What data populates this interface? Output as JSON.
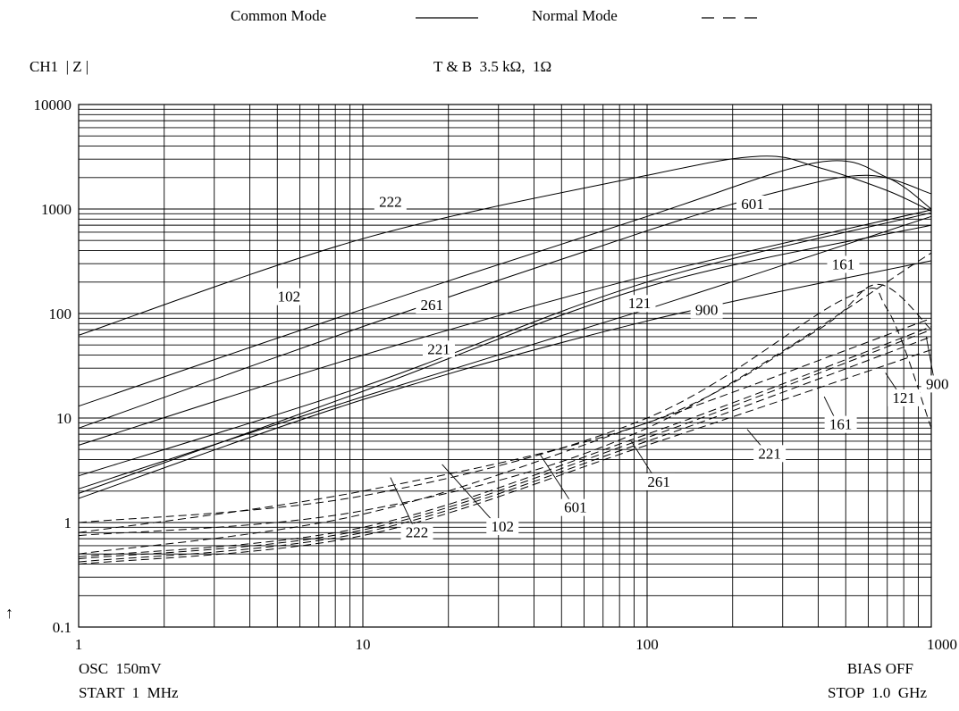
{
  "chart_data": {
    "type": "line",
    "x_scale": "log",
    "y_scale": "log",
    "xlim": [
      1,
      1000
    ],
    "ylim": [
      0.1,
      10000
    ],
    "grid": true,
    "legend": {
      "common": "Common Mode",
      "normal": "Normal Mode",
      "placement": "top-center"
    },
    "ylabel": "CH1  | Z |",
    "title": "T & B  3.5 kΩ,  1Ω",
    "x_ticks": [
      "1",
      "10",
      "100",
      "1000"
    ],
    "y_ticks": [
      "10000",
      "1000",
      "100",
      "10",
      "1",
      "0.1"
    ],
    "arrow_glyph": "↑",
    "footer": {
      "osc": "OSC  150mV",
      "start": "START  1  MHz",
      "bias": "BIAS OFF",
      "stop": "STOP  1.0  GHz"
    },
    "common_mode_series": [
      {
        "name": "222",
        "points": [
          [
            1,
            62
          ],
          [
            10,
            520
          ],
          [
            100,
            2100
          ],
          [
            250,
            3200
          ],
          [
            400,
            2500
          ],
          [
            700,
            1500
          ],
          [
            1000,
            950
          ]
        ]
      },
      {
        "name": "601",
        "points": [
          [
            1,
            13
          ],
          [
            10,
            110
          ],
          [
            100,
            850
          ],
          [
            400,
            2800
          ],
          [
            700,
            2000
          ],
          [
            1000,
            1000
          ]
        ]
      },
      {
        "name": "102",
        "points": [
          [
            1,
            8
          ],
          [
            10,
            75
          ],
          [
            100,
            620
          ],
          [
            300,
            1500
          ],
          [
            600,
            2100
          ],
          [
            1000,
            1400
          ]
        ]
      },
      {
        "name": "261",
        "points": [
          [
            1,
            5.5
          ],
          [
            10,
            40
          ],
          [
            100,
            230
          ],
          [
            1000,
            980
          ]
        ]
      },
      {
        "name": "221",
        "points": [
          [
            1,
            2.8
          ],
          [
            10,
            20
          ],
          [
            100,
            200
          ],
          [
            1000,
            920
          ]
        ]
      },
      {
        "name": "121",
        "points": [
          [
            1,
            2.1
          ],
          [
            10,
            16
          ],
          [
            100,
            110
          ],
          [
            1000,
            850
          ]
        ]
      },
      {
        "name": "161",
        "points": [
          [
            1,
            1.9
          ],
          [
            10,
            18
          ],
          [
            100,
            180
          ],
          [
            1000,
            700
          ]
        ]
      },
      {
        "name": "900",
        "points": [
          [
            1,
            1.7
          ],
          [
            10,
            15
          ],
          [
            100,
            85
          ],
          [
            1000,
            320
          ]
        ]
      }
    ],
    "normal_mode_series": [
      {
        "name": "222",
        "points": [
          [
            1,
            1
          ],
          [
            10,
            1.8
          ],
          [
            100,
            10
          ],
          [
            500,
            140
          ],
          [
            700,
            110
          ],
          [
            1000,
            8
          ]
        ]
      },
      {
        "name": "900",
        "points": [
          [
            1,
            0.8
          ],
          [
            10,
            2
          ],
          [
            100,
            9
          ],
          [
            400,
            70
          ],
          [
            650,
            190
          ],
          [
            1000,
            70
          ]
        ]
      },
      {
        "name": "102",
        "points": [
          [
            1,
            0.75
          ],
          [
            10,
            1.3
          ],
          [
            100,
            8
          ],
          [
            1000,
            380
          ]
        ]
      },
      {
        "name": "601",
        "points": [
          [
            1,
            0.5
          ],
          [
            10,
            1.2
          ],
          [
            100,
            9
          ],
          [
            1000,
            90
          ]
        ]
      },
      {
        "name": "261",
        "points": [
          [
            1,
            0.47
          ],
          [
            10,
            0.9
          ],
          [
            100,
            7
          ],
          [
            1000,
            75
          ]
        ]
      },
      {
        "name": "221",
        "points": [
          [
            1,
            0.45
          ],
          [
            10,
            0.85
          ],
          [
            100,
            6.5
          ],
          [
            1000,
            70
          ]
        ]
      },
      {
        "name": "161",
        "points": [
          [
            1,
            0.42
          ],
          [
            10,
            0.8
          ],
          [
            100,
            6
          ],
          [
            1000,
            60
          ]
        ]
      },
      {
        "name": "121",
        "points": [
          [
            1,
            0.4
          ],
          [
            10,
            0.75
          ],
          [
            100,
            5.5
          ],
          [
            1000,
            45
          ]
        ]
      }
    ],
    "label_positions_note": "",
    "common_labels": [
      {
        "text": "222",
        "at": [
          12.5,
          1050
        ]
      },
      {
        "text": "601",
        "at": [
          235,
          1000
        ]
      },
      {
        "text": "102",
        "at": [
          5.5,
          130
        ]
      },
      {
        "text": "261",
        "at": [
          17.5,
          108
        ]
      },
      {
        "text": "221",
        "at": [
          18.5,
          41
        ]
      },
      {
        "text": "121",
        "at": [
          94,
          112
        ]
      },
      {
        "text": "900",
        "at": [
          162,
          97
        ]
      },
      {
        "text": "161",
        "at": [
          490,
          265
        ]
      }
    ],
    "normal_labels": [
      {
        "text": "222",
        "at": [
          15.5,
          0.72
        ]
      },
      {
        "text": "102",
        "at": [
          31,
          0.82
        ]
      },
      {
        "text": "601",
        "at": [
          56,
          1.25
        ]
      },
      {
        "text": "261",
        "at": [
          110,
          2.2
        ]
      },
      {
        "text": "221",
        "at": [
          270,
          4.1
        ]
      },
      {
        "text": "161",
        "at": [
          480,
          7.8
        ]
      },
      {
        "text": "121",
        "at": [
          800,
          14
        ]
      },
      {
        "text": "900",
        "at": [
          1050,
          19
        ]
      }
    ]
  }
}
